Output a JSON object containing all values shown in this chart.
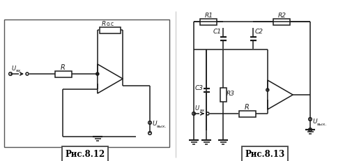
{
  "fig_width": 5.05,
  "fig_height": 2.32,
  "dpi": 100,
  "bg_color": "#ffffff",
  "line_color": "#1a1a1a",
  "lw": 1.1,
  "fig812_label": "Рис.8.12",
  "fig813_label": "Рис.8.13",
  "label_R_oc": "R о.с",
  "label_R": "R",
  "label_Uvx": "U вх",
  "label_Uvyx1": "U вых.",
  "label_R1": "R1",
  "label_R2": "R2",
  "label_C1": "C1",
  "label_C2": "C2",
  "label_C3": "C3",
  "label_R3": "R3",
  "label_Uvx2": "U вх",
  "label_Uvyx2": "U вых."
}
